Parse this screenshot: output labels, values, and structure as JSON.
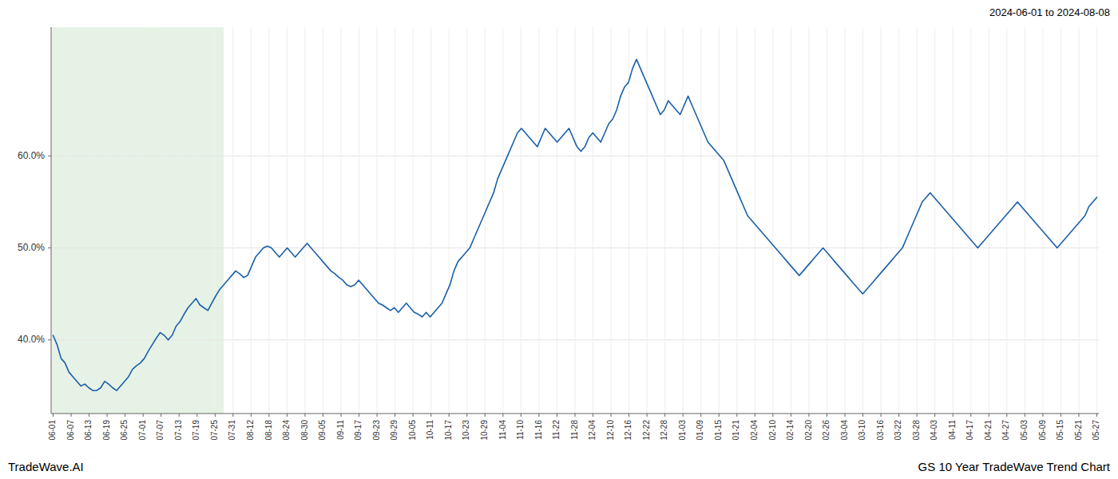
{
  "chart_data": {
    "type": "line",
    "title": "GS 10 Year TradeWave Trend Chart",
    "subtitle": "2024-06-01 to 2024-08-08",
    "annotations": [
      "TradeWave.AI"
    ],
    "color": "#1a5fa8",
    "grid": true,
    "span": {
      "xlim": [
        -0.5,
        43
      ],
      "color": "#d6ead6"
    },
    "xlim": [
      -0.5,
      263.5
    ],
    "xticks": [
      {
        "value": 0,
        "label": "06-01"
      },
      {
        "value": 4.5345,
        "label": "06-07"
      },
      {
        "value": 9.069,
        "label": "06-13"
      },
      {
        "value": 13.6034,
        "label": "06-19"
      },
      {
        "value": 18.1379,
        "label": "06-25"
      },
      {
        "value": 22.6724,
        "label": "07-01"
      },
      {
        "value": 27.2069,
        "label": "07-07"
      },
      {
        "value": 31.7414,
        "label": "07-13"
      },
      {
        "value": 36.2759,
        "label": "07-19"
      },
      {
        "value": 40.8103,
        "label": "07-25"
      },
      {
        "value": 45.3448,
        "label": "07-31"
      },
      {
        "value": 49.8793,
        "label": "08-12"
      },
      {
        "value": 54.4138,
        "label": "08-18"
      },
      {
        "value": 58.9483,
        "label": "08-24"
      },
      {
        "value": 63.4828,
        "label": "08-30"
      },
      {
        "value": 68.0172,
        "label": "09-05"
      },
      {
        "value": 72.5517,
        "label": "09-11"
      },
      {
        "value": 77.0862,
        "label": "09-17"
      },
      {
        "value": 81.6207,
        "label": "09-23"
      },
      {
        "value": 86.1552,
        "label": "09-29"
      },
      {
        "value": 90.6897,
        "label": "10-05"
      },
      {
        "value": 95.2241,
        "label": "10-11"
      },
      {
        "value": 99.7586,
        "label": "10-17"
      },
      {
        "value": 104.2931,
        "label": "10-23"
      },
      {
        "value": 108.8276,
        "label": "10-29"
      },
      {
        "value": 113.3621,
        "label": "11-04"
      },
      {
        "value": 117.8966,
        "label": "11-10"
      },
      {
        "value": 122.431,
        "label": "11-16"
      },
      {
        "value": 126.9655,
        "label": "11-22"
      },
      {
        "value": 131.5,
        "label": "11-28"
      },
      {
        "value": 136.0345,
        "label": "12-04"
      },
      {
        "value": 140.569,
        "label": "12-10"
      },
      {
        "value": 145.1034,
        "label": "12-16"
      },
      {
        "value": 149.6379,
        "label": "12-22"
      },
      {
        "value": 154.1724,
        "label": "12-28"
      },
      {
        "value": 158.7069,
        "label": "01-03"
      },
      {
        "value": 163.2414,
        "label": "01-09"
      },
      {
        "value": 167.7759,
        "label": "01-15"
      },
      {
        "value": 172.3103,
        "label": "01-21"
      },
      {
        "value": 176.8448,
        "label": "02-04"
      },
      {
        "value": 181.3793,
        "label": "02-10"
      },
      {
        "value": 185.9138,
        "label": "02-14"
      },
      {
        "value": 190.4483,
        "label": "02-20"
      },
      {
        "value": 194.9828,
        "label": "02-26"
      },
      {
        "value": 199.5172,
        "label": "03-04"
      },
      {
        "value": 204.0517,
        "label": "03-10"
      },
      {
        "value": 208.5862,
        "label": "03-16"
      },
      {
        "value": 213.1207,
        "label": "03-22"
      },
      {
        "value": 217.6552,
        "label": "03-28"
      },
      {
        "value": 222.1897,
        "label": "04-03"
      },
      {
        "value": 226.7241,
        "label": "04-11"
      },
      {
        "value": 231.2586,
        "label": "04-17"
      },
      {
        "value": 235.7931,
        "label": "04-21"
      },
      {
        "value": 240.3276,
        "label": "04-27"
      },
      {
        "value": 244.8621,
        "label": "05-03"
      },
      {
        "value": 249.3966,
        "label": "05-09"
      },
      {
        "value": 253.931,
        "label": "05-15"
      },
      {
        "value": 258.4655,
        "label": "05-21"
      },
      {
        "value": 263,
        "label": "05-27"
      }
    ],
    "ylim": [
      32,
      74
    ],
    "yticks": [
      {
        "value": 40.0,
        "label": "40.0%"
      },
      {
        "value": 50.0,
        "label": "50.0%"
      },
      {
        "value": 60.0,
        "label": "60.0%"
      }
    ],
    "values": [
      40.5,
      39.5,
      38.0,
      37.5,
      36.5,
      36.0,
      35.5,
      35.0,
      35.2,
      34.8,
      34.5,
      34.5,
      34.8,
      35.5,
      35.2,
      34.8,
      34.5,
      35.0,
      35.5,
      36.0,
      36.8,
      37.2,
      37.5,
      38.0,
      38.8,
      39.5,
      40.2,
      40.8,
      40.5,
      40.0,
      40.5,
      41.5,
      42.0,
      42.8,
      43.5,
      44.0,
      44.5,
      43.8,
      43.5,
      43.2,
      44.0,
      44.8,
      45.5,
      46.0,
      46.5,
      47.0,
      47.5,
      47.2,
      46.8,
      47.0,
      48.0,
      49.0,
      49.5,
      50.0,
      50.2,
      50.0,
      49.5,
      49.0,
      49.5,
      50.0,
      49.5,
      49.0,
      49.5,
      50.0,
      50.5,
      50.0,
      49.5,
      49.0,
      48.5,
      48.0,
      47.5,
      47.2,
      46.8,
      46.5,
      46.0,
      45.8,
      46.0,
      46.5,
      46.0,
      45.5,
      45.0,
      44.5,
      44.0,
      43.8,
      43.5,
      43.2,
      43.5,
      43.0,
      43.5,
      44.0,
      43.5,
      43.0,
      42.8,
      42.5,
      43.0,
      42.5,
      43.0,
      43.5,
      44.0,
      45.0,
      46.0,
      47.5,
      48.5,
      49.0,
      49.5,
      50.0,
      51.0,
      52.0,
      53.0,
      54.0,
      55.0,
      56.0,
      57.5,
      58.5,
      59.5,
      60.5,
      61.5,
      62.5,
      63.0,
      62.5,
      62.0,
      61.5,
      61.0,
      62.0,
      63.0,
      62.5,
      62.0,
      61.5,
      62.0,
      62.5,
      63.0,
      62.0,
      61.0,
      60.5,
      61.0,
      62.0,
      62.5,
      62.0,
      61.5,
      62.5,
      63.5,
      64.0,
      65.0,
      66.5,
      67.5,
      68.0,
      69.5,
      70.5,
      69.5,
      68.5,
      67.5,
      66.5,
      65.5,
      64.5,
      65.0,
      66.0,
      65.5,
      65.0,
      64.5,
      65.5,
      66.5,
      65.5,
      64.5,
      63.5,
      62.5,
      61.5,
      61.0,
      60.5,
      60.0,
      59.5,
      58.5,
      57.5,
      56.5,
      55.5,
      54.5,
      53.5,
      53.0,
      52.5,
      52.0,
      51.5,
      51.0,
      50.5,
      50.0,
      49.5,
      49.0,
      48.5,
      48.0,
      47.5,
      47.0,
      47.5,
      48.0,
      48.5,
      49.0,
      49.5,
      50.0,
      49.5,
      49.0,
      48.5,
      48.0,
      47.5,
      47.0,
      46.5,
      46.0,
      45.5,
      45.0,
      45.5,
      46.0,
      46.5,
      47.0,
      47.5,
      48.0,
      48.5,
      49.0,
      49.5,
      50.0,
      51.0,
      52.0,
      53.0,
      54.0,
      55.0,
      55.5,
      56.0,
      55.5,
      55.0,
      54.5,
      54.0,
      53.5,
      53.0,
      52.5,
      52.0,
      51.5,
      51.0,
      50.5,
      50.0,
      50.5,
      51.0,
      51.5,
      52.0,
      52.5,
      53.0,
      53.5,
      54.0,
      54.5,
      55.0,
      54.5,
      54.0,
      53.5,
      53.0,
      52.5,
      52.0,
      51.5,
      51.0,
      50.5,
      50.0,
      50.5,
      51.0,
      51.5,
      52.0,
      52.5,
      53.0,
      53.5,
      54.5,
      55.0,
      55.5
    ]
  }
}
